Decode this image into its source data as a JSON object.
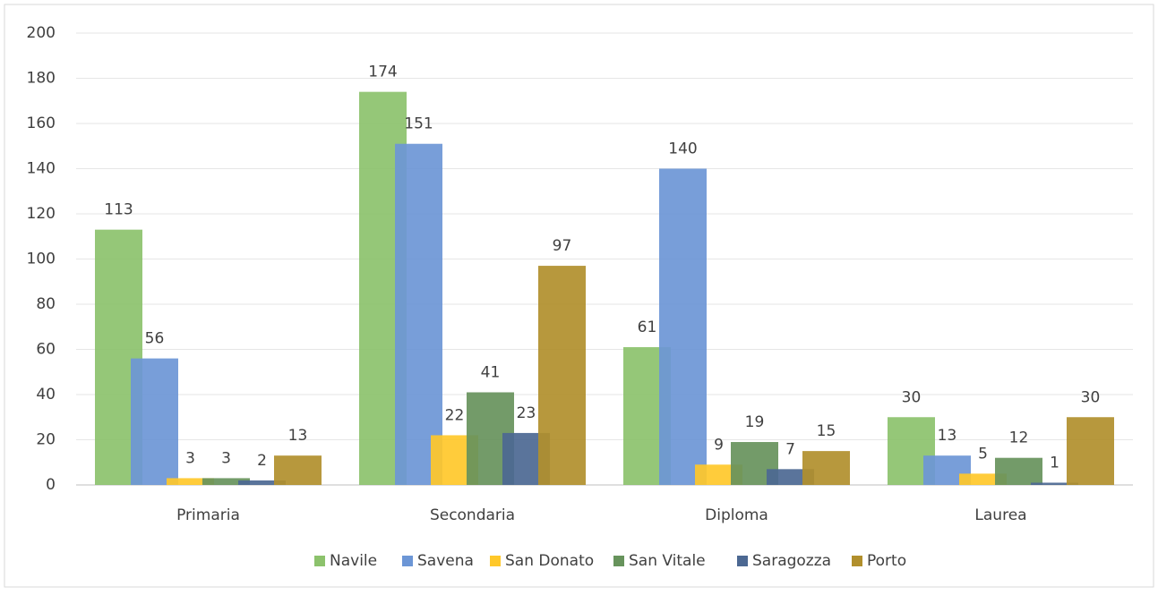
{
  "chart_data": {
    "type": "bar",
    "categories": [
      "Primaria",
      "Secondaria",
      "Diploma",
      "Laurea"
    ],
    "series": [
      {
        "name": "Navile",
        "color": "#8cc26c",
        "values": [
          113,
          174,
          61,
          30
        ]
      },
      {
        "name": "Savena",
        "color": "#6c96d6",
        "values": [
          56,
          151,
          140,
          13
        ]
      },
      {
        "name": "San Donato",
        "color": "#ffc82a",
        "values": [
          3,
          22,
          9,
          5
        ]
      },
      {
        "name": "San Vitale",
        "color": "#67935c",
        "values": [
          3,
          41,
          19,
          12
        ]
      },
      {
        "name": "Saragozza",
        "color": "#4c6892",
        "values": [
          2,
          23,
          7,
          1
        ]
      },
      {
        "name": "Porto",
        "color": "#b18f2c",
        "values": [
          13,
          97,
          15,
          30
        ]
      }
    ],
    "ylim": [
      0,
      200
    ],
    "yticks": [
      0,
      20,
      40,
      60,
      80,
      100,
      120,
      140,
      160,
      180,
      200
    ],
    "grid": true,
    "legend": "bottom",
    "data_labels": true
  }
}
